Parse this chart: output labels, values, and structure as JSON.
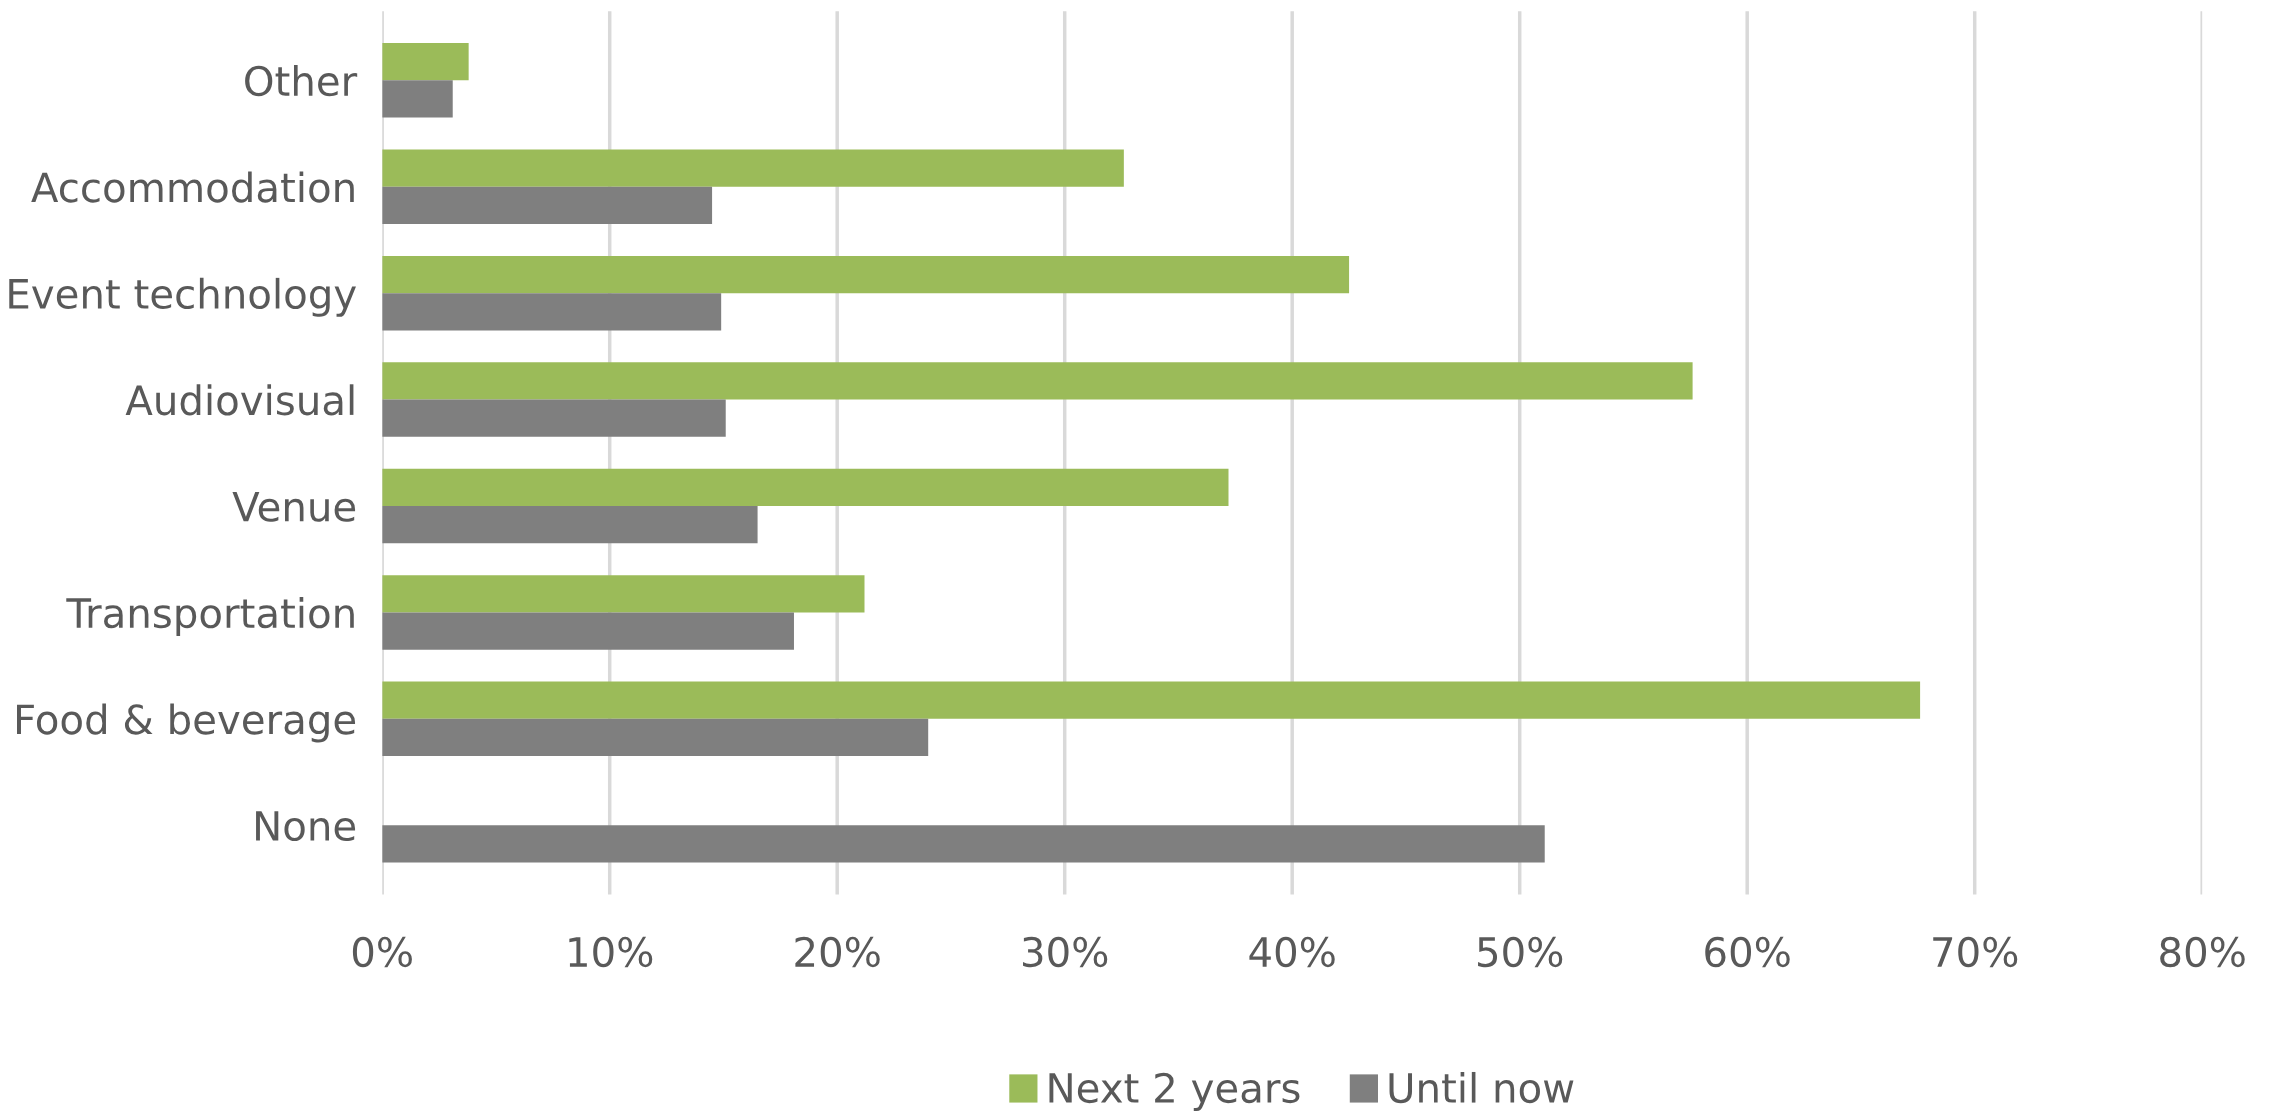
{
  "chart_data": {
    "type": "bar",
    "orientation": "horizontal",
    "categories": [
      "Other",
      "Accommodation",
      "Event technology",
      "Audiovisual",
      "Venue",
      "Transportation",
      "Food & beverage",
      "None"
    ],
    "series": [
      {
        "name": "Next 2 years",
        "color": "#9bbb59",
        "values": [
          3.8,
          32.6,
          42.5,
          57.6,
          37.2,
          21.2,
          67.6,
          null
        ]
      },
      {
        "name": "Until now",
        "color": "#7f7f7f",
        "values": [
          3.1,
          14.5,
          14.9,
          15.1,
          16.5,
          18.1,
          24.0,
          51.1
        ]
      }
    ],
    "xlim": [
      0,
      80
    ],
    "xticks": [
      {
        "value": 0,
        "label": "0%"
      },
      {
        "value": 10,
        "label": "10%"
      },
      {
        "value": 20,
        "label": "20%"
      },
      {
        "value": 30,
        "label": "30%"
      },
      {
        "value": 40,
        "label": "40%"
      },
      {
        "value": 50,
        "label": "50%"
      },
      {
        "value": 60,
        "label": "60%"
      },
      {
        "value": 70,
        "label": "70%"
      },
      {
        "value": 80,
        "label": "80%"
      }
    ],
    "grid": "x",
    "legend": "bottom"
  }
}
